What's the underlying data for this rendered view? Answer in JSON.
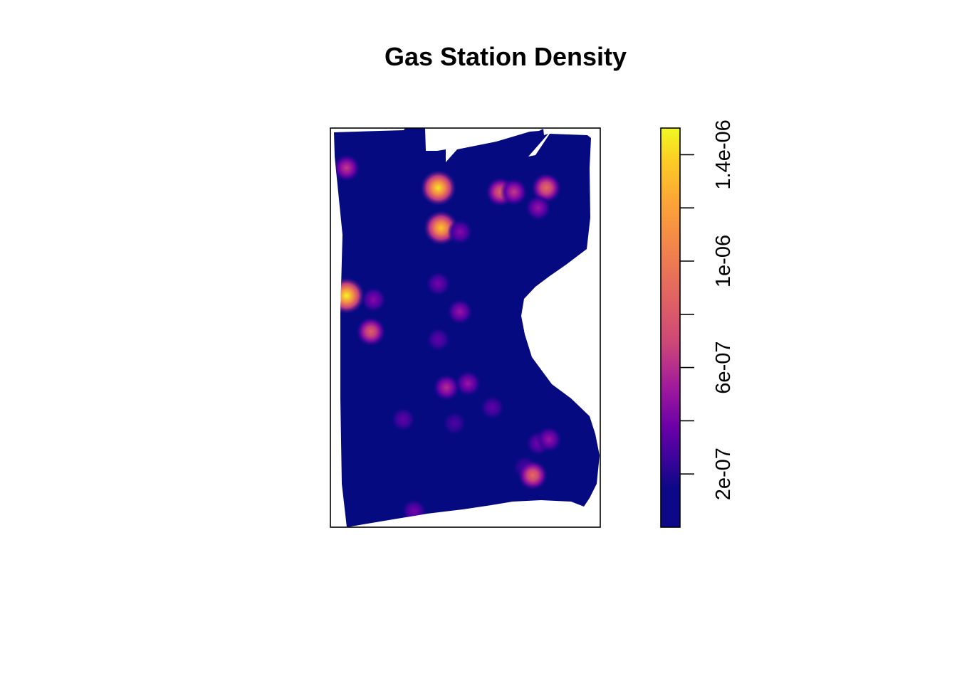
{
  "chart_data": {
    "type": "heatmap",
    "title": "Gas Station Density",
    "xlabel": "",
    "ylabel": "",
    "axes_shown": false,
    "legend": {
      "position": "right",
      "colormap": "plasma",
      "range": [
        0,
        1.5e-06
      ],
      "ticks": [
        2e-07,
        4e-07,
        6e-07,
        8e-07,
        1e-06,
        1.2e-06,
        1.4e-06
      ],
      "tick_labels": [
        "2e-07",
        "",
        "6e-07",
        "",
        "1e-06",
        "",
        "1.4e-06"
      ]
    },
    "background_value": 1e-07,
    "colors": {
      "low": "#0d0887",
      "background": "#050a80",
      "high": "#f0f921"
    },
    "hotspots": [
      {
        "x": 0.06,
        "y": 0.42,
        "value": 1.5e-06
      },
      {
        "x": 0.15,
        "y": 0.51,
        "value": 8.5e-07
      },
      {
        "x": 0.16,
        "y": 0.43,
        "value": 4.5e-07
      },
      {
        "x": 0.4,
        "y": 0.15,
        "value": 1.45e-06
      },
      {
        "x": 0.41,
        "y": 0.25,
        "value": 1.35e-06
      },
      {
        "x": 0.48,
        "y": 0.26,
        "value": 4.5e-07
      },
      {
        "x": 0.63,
        "y": 0.16,
        "value": 8.5e-07
      },
      {
        "x": 0.68,
        "y": 0.16,
        "value": 6.5e-07
      },
      {
        "x": 0.8,
        "y": 0.15,
        "value": 9e-07
      },
      {
        "x": 0.77,
        "y": 0.2,
        "value": 5e-07
      },
      {
        "x": 0.06,
        "y": 0.1,
        "value": 6.5e-07
      },
      {
        "x": 0.4,
        "y": 0.39,
        "value": 4e-07
      },
      {
        "x": 0.48,
        "y": 0.46,
        "value": 5e-07
      },
      {
        "x": 0.4,
        "y": 0.53,
        "value": 3.5e-07
      },
      {
        "x": 0.6,
        "y": 0.7,
        "value": 3.5e-07
      },
      {
        "x": 0.27,
        "y": 0.73,
        "value": 3.5e-07
      },
      {
        "x": 0.43,
        "y": 0.65,
        "value": 6e-07
      },
      {
        "x": 0.51,
        "y": 0.64,
        "value": 5e-07
      },
      {
        "x": 0.46,
        "y": 0.74,
        "value": 3e-07
      },
      {
        "x": 0.77,
        "y": 0.79,
        "value": 4e-07
      },
      {
        "x": 0.72,
        "y": 0.85,
        "value": 3e-07
      },
      {
        "x": 0.75,
        "y": 0.87,
        "value": 9e-07
      },
      {
        "x": 0.81,
        "y": 0.78,
        "value": 5e-07
      },
      {
        "x": 0.31,
        "y": 0.96,
        "value": 4e-07
      }
    ]
  }
}
